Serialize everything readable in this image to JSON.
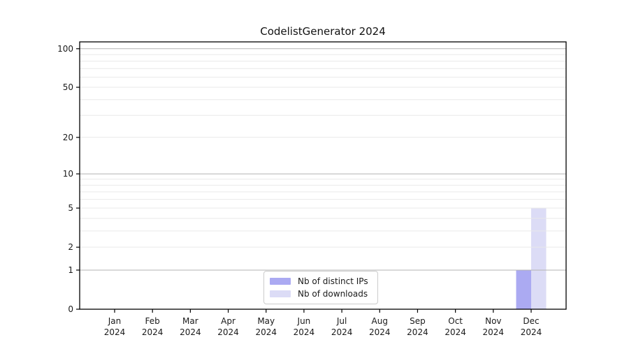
{
  "chart_data": {
    "type": "bar",
    "title": "CodelistGenerator 2024",
    "categories": [
      "Jan",
      "Feb",
      "Mar",
      "Apr",
      "May",
      "Jun",
      "Jul",
      "Aug",
      "Sep",
      "Oct",
      "Nov",
      "Dec"
    ],
    "x_year": "2024",
    "series": [
      {
        "name": "Nb of distinct IPs",
        "color": "#abaaf2",
        "values": [
          0,
          0,
          0,
          0,
          0,
          0,
          0,
          0,
          0,
          0,
          0,
          1
        ]
      },
      {
        "name": "Nb of downloads",
        "color": "#dcdcf6",
        "values": [
          0,
          0,
          0,
          0,
          0,
          0,
          0,
          0,
          0,
          0,
          0,
          5
        ]
      }
    ],
    "yscale": "log1p",
    "ylim": [
      0,
      113
    ],
    "yticks": [
      0,
      1,
      2,
      5,
      10,
      20,
      50,
      100
    ],
    "strong_gridlines": [
      1,
      10,
      100
    ],
    "weak_gridlines": [
      2,
      3,
      4,
      5,
      6,
      7,
      8,
      9,
      20,
      30,
      40,
      50,
      60,
      70,
      80,
      90
    ],
    "grid": "horizontal",
    "legend_position": "bottom-center-inside",
    "colors": {
      "spine": "#000000",
      "tick_label": "#1a1a1a",
      "strong_grid": "#b3b3b3",
      "weak_grid": "#e9e9e9"
    }
  }
}
